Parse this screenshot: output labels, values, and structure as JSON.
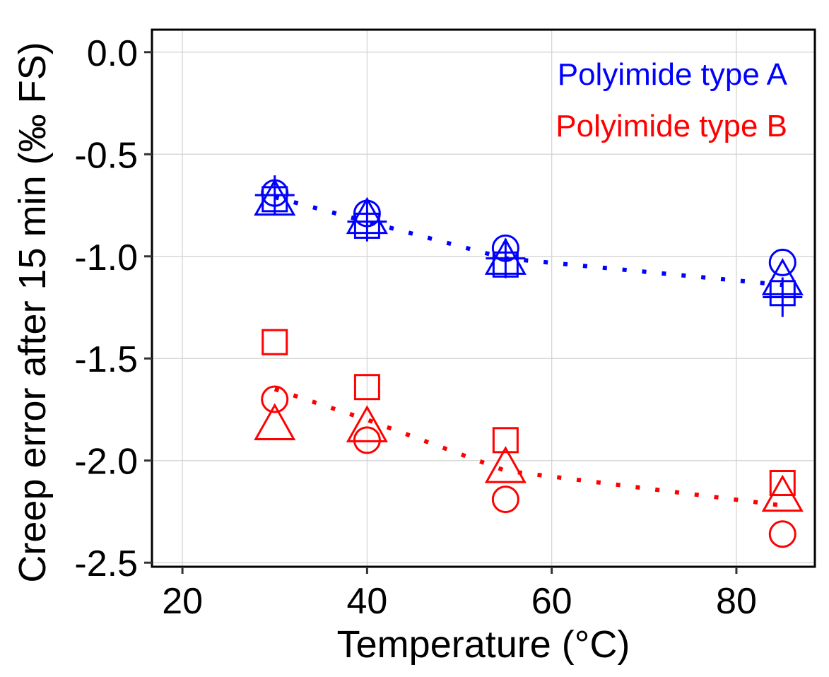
{
  "chart_data": {
    "type": "scatter",
    "title": "",
    "xlabel": "Temperature (°C)",
    "ylabel": "Creep error after 15 min (‰ FS)",
    "xlim": [
      16.7,
      88.5
    ],
    "ylim": [
      -2.52,
      0.11
    ],
    "xticks": [
      20,
      40,
      60,
      80
    ],
    "xtick_labels": [
      "20",
      "40",
      "60",
      "80"
    ],
    "yticks": [
      0.0,
      -0.5,
      -1.0,
      -1.5,
      -2.0,
      -2.5
    ],
    "ytick_labels": [
      "0.0",
      "-0.5",
      "-1.0",
      "-1.5",
      "-2.0",
      "-2.5"
    ],
    "grid": true,
    "legend_position": "top-right",
    "series": [
      {
        "name": "Polyimide type A",
        "color": "#0000ff",
        "x": [
          30,
          40,
          55,
          85
        ],
        "samples": [
          {
            "marker": "circle",
            "values": [
              -0.69,
              -0.79,
              -0.96,
              -1.03
            ]
          },
          {
            "marker": "plus",
            "values": [
              -0.7,
              -0.83,
              -1.01,
              -1.2
            ]
          },
          {
            "marker": "square",
            "values": [
              -0.72,
              -0.85,
              -1.04,
              -1.18
            ]
          },
          {
            "marker": "triangle",
            "values": [
              -0.74,
              -0.83,
              -1.03,
              -1.13
            ]
          }
        ],
        "trend": [
          -0.71,
          -0.83,
          -1.01,
          -1.14
        ]
      },
      {
        "name": "Polyimide type B",
        "color": "#ff0000",
        "x": [
          30,
          40,
          55,
          85
        ],
        "samples": [
          {
            "marker": "square",
            "values": [
              -1.42,
              -1.64,
              -1.9,
              -2.11
            ]
          },
          {
            "marker": "circle",
            "values": [
              -1.7,
              -1.9,
              -2.19,
              -2.36
            ]
          },
          {
            "marker": "triangle",
            "values": [
              -1.84,
              -1.85,
              -2.05,
              -2.19
            ]
          }
        ],
        "trend": [
          -1.65,
          -1.8,
          -2.05,
          -2.22
        ]
      }
    ]
  }
}
